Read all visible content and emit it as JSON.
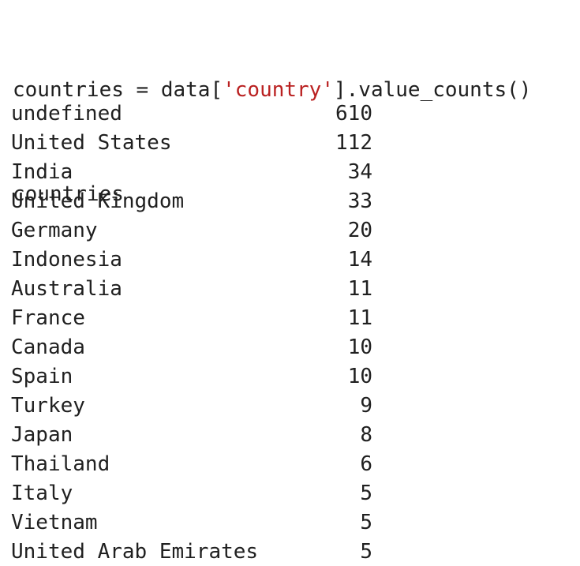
{
  "code": {
    "line1": {
      "before": "countries = data[",
      "string": "'country'",
      "after": "].value_counts()"
    },
    "line2": "countries"
  },
  "output": {
    "rows": [
      {
        "label": "undefined",
        "count": "610"
      },
      {
        "label": "United States",
        "count": "112"
      },
      {
        "label": "India",
        "count": "34"
      },
      {
        "label": "United Kingdom",
        "count": "33"
      },
      {
        "label": "Germany",
        "count": "20"
      },
      {
        "label": "Indonesia",
        "count": "14"
      },
      {
        "label": "Australia",
        "count": "11"
      },
      {
        "label": "France",
        "count": "11"
      },
      {
        "label": "Canada",
        "count": "10"
      },
      {
        "label": "Spain",
        "count": "10"
      },
      {
        "label": "Turkey",
        "count": "9"
      },
      {
        "label": "Japan",
        "count": "8"
      },
      {
        "label": "Thailand",
        "count": "6"
      },
      {
        "label": "Italy",
        "count": "5"
      },
      {
        "label": "Vietnam",
        "count": "5"
      },
      {
        "label": "United Arab Emirates",
        "count": "5"
      }
    ]
  }
}
